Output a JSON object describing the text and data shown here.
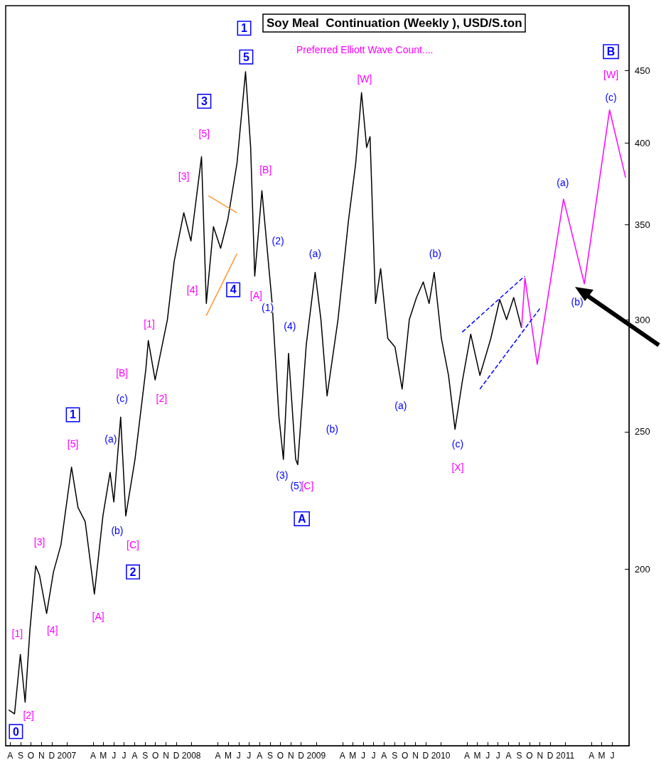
{
  "chart_data": {
    "type": "line",
    "title": "Soy Meal  Continuation (Weekly ), USD/S.ton",
    "subtitle": "Preferred Elliott Wave Count....",
    "log": "y",
    "ylim": [
      150,
      500
    ],
    "yticks": [
      200,
      250,
      300,
      350,
      400,
      450
    ],
    "xlim": [
      "2006-08-02",
      "2011-08-03"
    ],
    "xticks": [
      {
        "value": "2006-08-15",
        "label": "A"
      },
      {
        "value": "2006-09-15",
        "label": "S"
      },
      {
        "value": "2006-10-15",
        "label": "O"
      },
      {
        "value": "2006-11-15",
        "label": "N"
      },
      {
        "value": "2006-12-15",
        "label": "D"
      },
      {
        "value": "2007-01-28",
        "label": "2007"
      },
      {
        "value": "2007-04-15",
        "label": "A"
      },
      {
        "value": "2007-05-15",
        "label": "M"
      },
      {
        "value": "2007-06-15",
        "label": "J"
      },
      {
        "value": "2007-07-15",
        "label": "J"
      },
      {
        "value": "2007-08-15",
        "label": "A"
      },
      {
        "value": "2007-09-15",
        "label": "S"
      },
      {
        "value": "2007-10-15",
        "label": "O"
      },
      {
        "value": "2007-11-15",
        "label": "N"
      },
      {
        "value": "2007-12-15",
        "label": "D"
      },
      {
        "value": "2008-01-28",
        "label": "2008"
      },
      {
        "value": "2008-04-15",
        "label": "A"
      },
      {
        "value": "2008-05-15",
        "label": "M"
      },
      {
        "value": "2008-06-15",
        "label": "J"
      },
      {
        "value": "2008-07-15",
        "label": "J"
      },
      {
        "value": "2008-08-15",
        "label": "A"
      },
      {
        "value": "2008-09-15",
        "label": "S"
      },
      {
        "value": "2008-10-15",
        "label": "O"
      },
      {
        "value": "2008-11-15",
        "label": "N"
      },
      {
        "value": "2008-12-15",
        "label": "D"
      },
      {
        "value": "2009-01-28",
        "label": "2009"
      },
      {
        "value": "2009-04-15",
        "label": "A"
      },
      {
        "value": "2009-05-15",
        "label": "M"
      },
      {
        "value": "2009-06-15",
        "label": "J"
      },
      {
        "value": "2009-07-15",
        "label": "J"
      },
      {
        "value": "2009-08-15",
        "label": "A"
      },
      {
        "value": "2009-09-15",
        "label": "S"
      },
      {
        "value": "2009-10-15",
        "label": "O"
      },
      {
        "value": "2009-11-15",
        "label": "N"
      },
      {
        "value": "2009-12-15",
        "label": "D"
      },
      {
        "value": "2010-01-28",
        "label": "2010"
      },
      {
        "value": "2010-04-15",
        "label": "A"
      },
      {
        "value": "2010-05-15",
        "label": "M"
      },
      {
        "value": "2010-06-15",
        "label": "J"
      },
      {
        "value": "2010-07-15",
        "label": "J"
      },
      {
        "value": "2010-08-15",
        "label": "A"
      },
      {
        "value": "2010-09-15",
        "label": "S"
      },
      {
        "value": "2010-10-15",
        "label": "O"
      },
      {
        "value": "2010-11-15",
        "label": "N"
      },
      {
        "value": "2010-12-15",
        "label": "D"
      },
      {
        "value": "2011-01-28",
        "label": "2011"
      },
      {
        "value": "2011-04-15",
        "label": "A"
      },
      {
        "value": "2011-05-15",
        "label": "M"
      },
      {
        "value": "2011-06-15",
        "label": "J"
      }
    ],
    "grid": false,
    "marker": "none",
    "series": [
      {
        "color": "#000000",
        "x": [
          "2006-08-11",
          "2006-08-28",
          "2006-09-14",
          "2006-09-28",
          "2006-10-12",
          "2006-10-29",
          "2006-11-09",
          "2006-11-30",
          "2006-12-20",
          "2007-01-11",
          "2007-02-11",
          "2007-03-02",
          "2007-03-23",
          "2007-04-19",
          "2007-05-14",
          "2007-06-04",
          "2007-06-15",
          "2007-07-05",
          "2007-07-20",
          "2007-08-16",
          "2007-09-17",
          "2007-09-24",
          "2007-10-14",
          "2007-11-19",
          "2007-12-09",
          "2008-01-06",
          "2008-01-27",
          "2008-02-27",
          "2008-03-12",
          "2008-04-02",
          "2008-04-23",
          "2008-05-14",
          "2008-06-10",
          "2008-07-05",
          "2008-07-20",
          "2008-08-01",
          "2008-08-22",
          "2008-09-21",
          "2008-10-11",
          "2008-10-24",
          "2008-11-08",
          "2008-11-29",
          "2008-12-05",
          "2008-12-30",
          "2009-01-25",
          "2009-02-11",
          "2009-03-01",
          "2009-04-02",
          "2009-05-03",
          "2009-05-24",
          "2009-06-10",
          "2009-06-25",
          "2009-07-05",
          "2009-07-21",
          "2009-08-05",
          "2009-08-26",
          "2009-09-16",
          "2009-10-07",
          "2009-10-28",
          "2009-11-18",
          "2009-12-08",
          "2009-12-25",
          "2010-01-09",
          "2010-01-30",
          "2010-02-20",
          "2010-03-11",
          "2010-04-01",
          "2010-04-26",
          "2010-05-23",
          "2010-06-24",
          "2010-07-20",
          "2010-08-09",
          "2010-08-30",
          "2010-09-22"
        ],
        "values": [
          159,
          158,
          174,
          161,
          181,
          201,
          198,
          186,
          199,
          208,
          236,
          221,
          216,
          192,
          218,
          234,
          223,
          256,
          218,
          239,
          277,
          290,
          272,
          300,
          330,
          357,
          341,
          391,
          308,
          349,
          337,
          353,
          387,
          449,
          397,
          322,
          370,
          308,
          256,
          239,
          284,
          239,
          237,
          288,
          324,
          300,
          265,
          300,
          353,
          387,
          434,
          397,
          404,
          308,
          326,
          291,
          287,
          268,
          300,
          311,
          319,
          308,
          324,
          291,
          274,
          251,
          271,
          293,
          274,
          291,
          310,
          300,
          311,
          296
        ]
      },
      {
        "color": "#ff00ff",
        "x": [
          "2010-09-22",
          "2010-10-02",
          "2010-11-07",
          "2011-01-23",
          "2011-03-25",
          "2011-06-07",
          "2011-07-24"
        ],
        "values": [
          296,
          321,
          279,
          365,
          318,
          422,
          378
        ]
      },
      {
        "color": "#0000ff",
        "line_style": "dashed",
        "x": [
          "2010-04-01",
          "2010-10-01"
        ],
        "values": [
          294,
          322
        ]
      },
      {
        "color": "#0000ff",
        "line_style": "dashed",
        "x": [
          "2010-05-23",
          "2010-11-17"
        ],
        "values": [
          268,
          306
        ]
      },
      {
        "color": "#ff9933",
        "x": [
          "2008-03-18",
          "2008-06-10"
        ],
        "values": [
          367,
          357
        ]
      },
      {
        "color": "#ff9933",
        "x": [
          "2008-03-12",
          "2008-06-10"
        ],
        "values": [
          302,
          334
        ]
      }
    ],
    "annotations": [
      {
        "text": "0",
        "x": "2006-09-01",
        "y": 153.5
      },
      {
        "text": "[2]",
        "x": "2006-10-08",
        "y": 157.6
      },
      {
        "text": "[1]",
        "x": "2006-09-05",
        "y": 180
      },
      {
        "text": "[3]",
        "x": "2006-11-09",
        "y": 209
      },
      {
        "text": "[4]",
        "x": "2006-12-17",
        "y": 181
      },
      {
        "text": "[5]",
        "x": "2007-02-15",
        "y": 245
      },
      {
        "text": "1",
        "x": "2007-02-15",
        "y": 257
      },
      {
        "text": "[A]",
        "x": "2007-04-30",
        "y": 185
      },
      {
        "text": "(a)",
        "x": "2007-06-06",
        "y": 247
      },
      {
        "text": "(b)",
        "x": "2007-06-25",
        "y": 213
      },
      {
        "text": "(c)",
        "x": "2007-07-09",
        "y": 264
      },
      {
        "text": "[B]",
        "x": "2007-07-09",
        "y": 275
      },
      {
        "text": "[C]",
        "x": "2007-08-10",
        "y": 208
      },
      {
        "text": "2",
        "x": "2007-08-10",
        "y": 199
      },
      {
        "text": "[1]",
        "x": "2007-09-27",
        "y": 298
      },
      {
        "text": "[2]",
        "x": "2007-11-02",
        "y": 264
      },
      {
        "text": "[3]",
        "x": "2008-01-06",
        "y": 379
      },
      {
        "text": "3",
        "x": "2008-03-06",
        "y": 428
      },
      {
        "text": "[5]",
        "x": "2008-03-06",
        "y": 406
      },
      {
        "text": "[4]",
        "x": "2008-01-31",
        "y": 315
      },
      {
        "text": "4",
        "x": "2008-05-30",
        "y": 315
      },
      {
        "text": "1",
        "x": "2008-07-01",
        "y": 482
      },
      {
        "text": "5",
        "x": "2008-07-07",
        "y": 460
      },
      {
        "text": "[B]",
        "x": "2008-09-02",
        "y": 383
      },
      {
        "text": "[A]",
        "x": "2008-08-05",
        "y": 312
      },
      {
        "text": "(2)",
        "x": "2008-10-08",
        "y": 341
      },
      {
        "text": "(1)",
        "x": "2008-09-08",
        "y": 306
      },
      {
        "text": "(4)",
        "x": "2008-11-12",
        "y": 297
      },
      {
        "text": "(3)",
        "x": "2008-10-20",
        "y": 233
      },
      {
        "text": "(5)",
        "x": "2008-12-01",
        "y": 229
      },
      {
        "text": "[C]",
        "x": "2009-01-02",
        "y": 229
      },
      {
        "text": "A",
        "x": "2008-12-17",
        "y": 217
      },
      {
        "text": "(a)",
        "x": "2009-01-25",
        "y": 334
      },
      {
        "text": "(b)",
        "x": "2009-03-16",
        "y": 251
      },
      {
        "text": "[W]",
        "x": "2009-06-19",
        "y": 444
      },
      {
        "text": "(a)",
        "x": "2009-10-03",
        "y": 261
      },
      {
        "text": "(b)",
        "x": "2010-01-12",
        "y": 334
      },
      {
        "text": "(c)",
        "x": "2010-03-19",
        "y": 245
      },
      {
        "text": "[X]",
        "x": "2010-03-19",
        "y": 236
      },
      {
        "text": "B",
        "x": "2011-06-11",
        "y": 464
      },
      {
        "text": "[W]",
        "x": "2011-06-11",
        "y": 447
      },
      {
        "text": "(c)",
        "x": "2011-06-11",
        "y": 431
      },
      {
        "text": "(a)",
        "x": "2011-01-21",
        "y": 375
      },
      {
        "text": "(b)",
        "x": "2011-03-04",
        "y": 309
      }
    ]
  }
}
